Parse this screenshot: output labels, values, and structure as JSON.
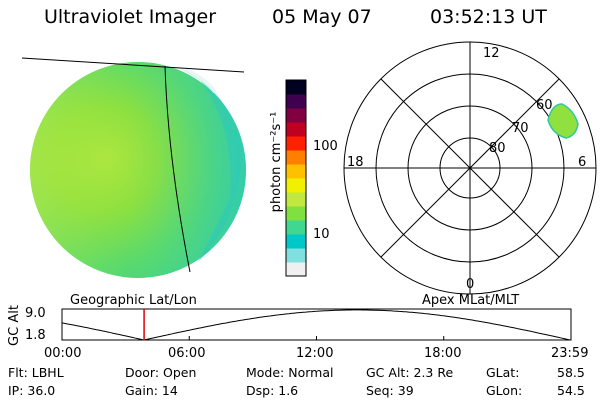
{
  "header": {
    "instrument": "Ultraviolet Imager",
    "date": "05 May 07",
    "time": "03:52:13 UT"
  },
  "colorbar": {
    "unit_label": "photon cm⁻²s⁻¹",
    "ticks": [
      "100",
      "10"
    ],
    "colors": [
      "#f0f0f0",
      "#80e0e0",
      "#00c8c8",
      "#40d890",
      "#80e040",
      "#c0e840",
      "#f0f000",
      "#ffc000",
      "#ff8000",
      "#ff2000",
      "#c00020",
      "#800040",
      "#400050",
      "#000020"
    ]
  },
  "labels": {
    "left_projection": "Geographic Lat/Lon",
    "right_projection": "Apex MLat/MLT"
  },
  "polar": {
    "mlt_labels": [
      "12",
      "18",
      "6",
      "0"
    ],
    "lat_labels": [
      "60",
      "70",
      "80"
    ]
  },
  "orbit": {
    "y_label": "GC Alt",
    "y_ticks": [
      "9.0",
      "1.8"
    ],
    "x_ticks": [
      "00:00",
      "06:00",
      "12:00",
      "18:00",
      "23:59"
    ]
  },
  "info": {
    "flt": "Flt: LBHL",
    "ip": "IP: 36.0",
    "door": "Door: Open",
    "gain": "Gain: 14",
    "mode": "Mode: Normal",
    "dsp": "Dsp:      1.6",
    "gcalt": "GC Alt: 2.3 Re",
    "seq": "Seq: 39",
    "glat_label": "GLat:",
    "glat_value": "58.5",
    "glon_label": "GLon:",
    "glon_value": "54.5"
  },
  "chart_data": {
    "type": "line",
    "title": "GC Alt",
    "x": [
      "00:00",
      "06:00",
      "12:00",
      "18:00",
      "23:59"
    ],
    "ylim": [
      1.8,
      9.0
    ],
    "current_time": "03:52:13"
  }
}
